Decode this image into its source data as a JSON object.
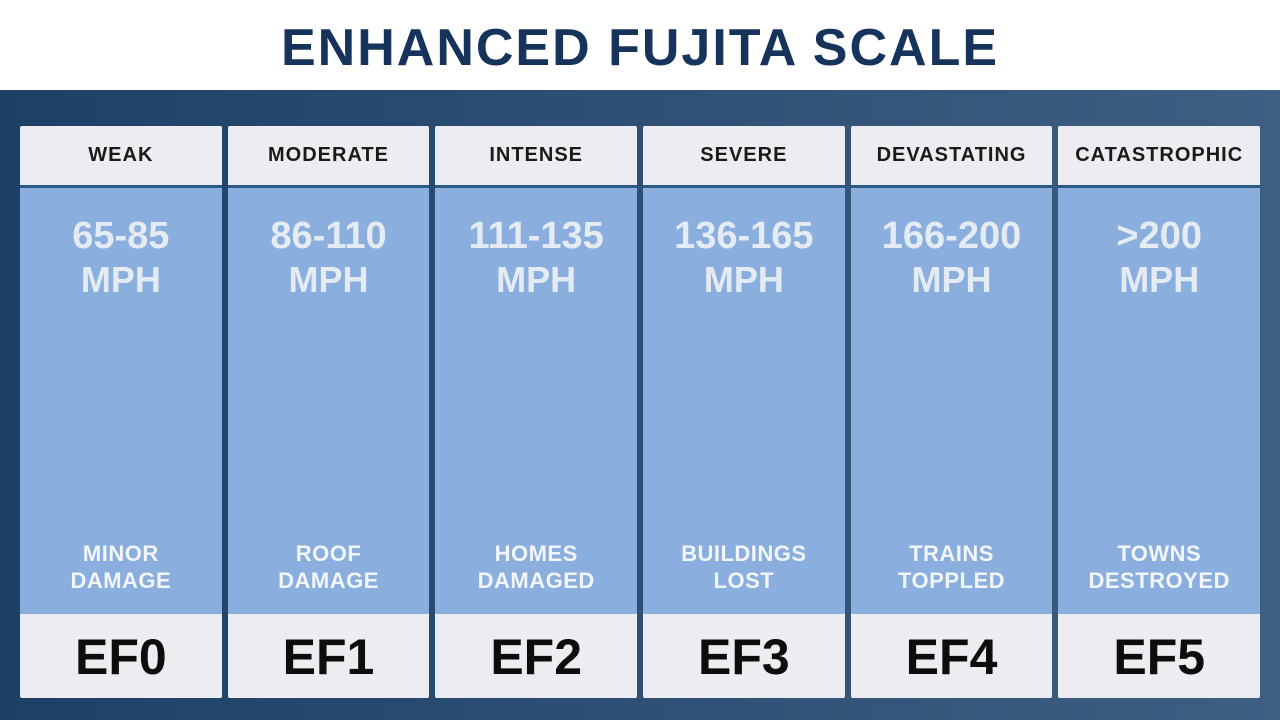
{
  "title": "ENHANCED FUJITA SCALE",
  "title_color": "#16335b",
  "body_gradient_from": "#1d4166",
  "body_gradient_to": "#3d5f82",
  "columns": [
    {
      "intensity": "WEAK",
      "wind_range": "65-85",
      "wind_unit": "MPH",
      "damage": "MINOR\nDAMAGE",
      "rating": "EF0"
    },
    {
      "intensity": "MODERATE",
      "wind_range": "86-110",
      "wind_unit": "MPH",
      "damage": "ROOF\nDAMAGE",
      "rating": "EF1"
    },
    {
      "intensity": "INTENSE",
      "wind_range": "111-135",
      "wind_unit": "MPH",
      "damage": "HOMES\nDAMAGED",
      "rating": "EF2"
    },
    {
      "intensity": "SEVERE",
      "wind_range": "136-165",
      "wind_unit": "MPH",
      "damage": "BUILDINGS\nLOST",
      "rating": "EF3"
    },
    {
      "intensity": "DEVASTATING",
      "wind_range": "166-200",
      "wind_unit": "MPH",
      "damage": "TRAINS\nTOPPLED",
      "rating": "EF4"
    },
    {
      "intensity": "CATASTROPHIC",
      "wind_range": ">200",
      "wind_unit": "MPH",
      "damage": "TOWNS\nDESTROYED",
      "rating": "EF5"
    }
  ],
  "column_style": {
    "header_bg": "#ebedf1",
    "header_text": "#1a1a1a",
    "divider_color": "#2a5a8a",
    "mid_bg": "#8aaede",
    "wind_text": "#e5ebf3",
    "damage_text": "#f2f5fa",
    "footer_bg": "#ebedf1",
    "footer_text": "#0d0d0d"
  }
}
